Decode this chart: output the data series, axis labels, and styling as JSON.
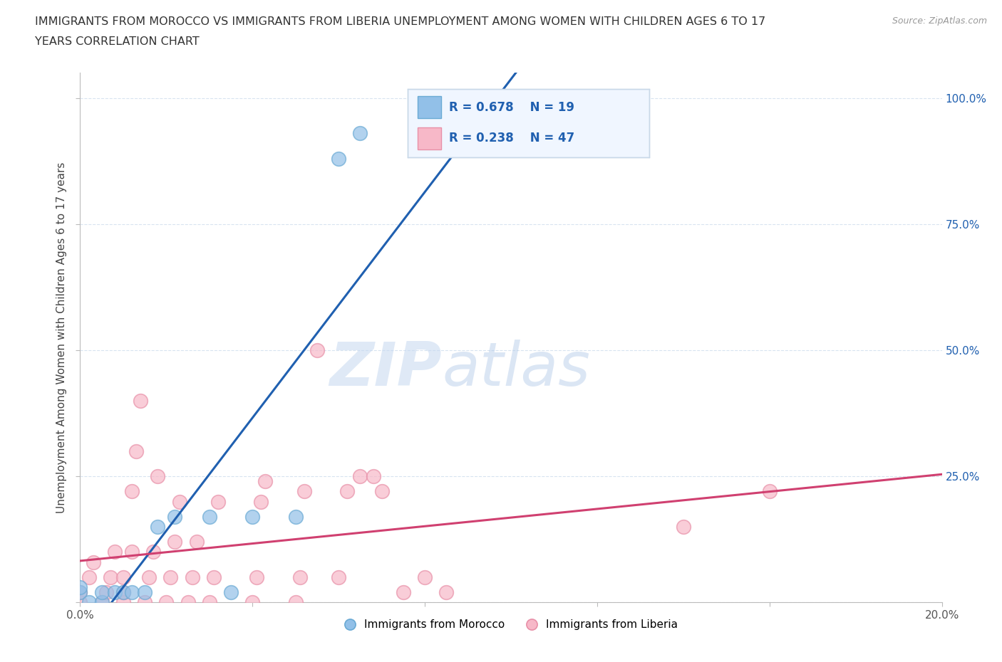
{
  "title_line1": "IMMIGRANTS FROM MOROCCO VS IMMIGRANTS FROM LIBERIA UNEMPLOYMENT AMONG WOMEN WITH CHILDREN AGES 6 TO 17",
  "title_line2": "YEARS CORRELATION CHART",
  "source": "Source: ZipAtlas.com",
  "ylabel": "Unemployment Among Women with Children Ages 6 to 17 years",
  "xlim": [
    0.0,
    0.2
  ],
  "ylim": [
    0.0,
    1.05
  ],
  "x_ticks": [
    0.0,
    0.04,
    0.08,
    0.12,
    0.16,
    0.2
  ],
  "y_ticks": [
    0.0,
    0.25,
    0.5,
    0.75,
    1.0
  ],
  "morocco_color": "#92c0e8",
  "morocco_edge": "#6aaad4",
  "liberia_color": "#f7b8c8",
  "liberia_edge": "#e890a8",
  "morocco_R": 0.678,
  "morocco_N": 19,
  "liberia_R": 0.238,
  "liberia_N": 47,
  "morocco_scatter": [
    [
      0.0,
      0.02
    ],
    [
      0.0,
      0.03
    ],
    [
      0.002,
      0.0
    ],
    [
      0.005,
      0.0
    ],
    [
      0.005,
      0.02
    ],
    [
      0.008,
      0.02
    ],
    [
      0.01,
      0.02
    ],
    [
      0.012,
      0.02
    ],
    [
      0.015,
      0.02
    ],
    [
      0.018,
      0.15
    ],
    [
      0.022,
      0.17
    ],
    [
      0.03,
      0.17
    ],
    [
      0.035,
      0.02
    ],
    [
      0.04,
      0.17
    ],
    [
      0.05,
      0.17
    ],
    [
      0.06,
      0.88
    ],
    [
      0.065,
      0.93
    ],
    [
      0.085,
      1.0
    ],
    [
      0.1,
      0.93
    ]
  ],
  "liberia_scatter": [
    [
      0.0,
      0.0
    ],
    [
      0.0,
      0.02
    ],
    [
      0.002,
      0.05
    ],
    [
      0.003,
      0.08
    ],
    [
      0.005,
      0.0
    ],
    [
      0.006,
      0.02
    ],
    [
      0.007,
      0.05
    ],
    [
      0.008,
      0.1
    ],
    [
      0.01,
      0.0
    ],
    [
      0.01,
      0.02
    ],
    [
      0.01,
      0.05
    ],
    [
      0.012,
      0.1
    ],
    [
      0.012,
      0.22
    ],
    [
      0.013,
      0.3
    ],
    [
      0.014,
      0.4
    ],
    [
      0.015,
      0.0
    ],
    [
      0.016,
      0.05
    ],
    [
      0.017,
      0.1
    ],
    [
      0.018,
      0.25
    ],
    [
      0.02,
      0.0
    ],
    [
      0.021,
      0.05
    ],
    [
      0.022,
      0.12
    ],
    [
      0.023,
      0.2
    ],
    [
      0.025,
      0.0
    ],
    [
      0.026,
      0.05
    ],
    [
      0.027,
      0.12
    ],
    [
      0.03,
      0.0
    ],
    [
      0.031,
      0.05
    ],
    [
      0.032,
      0.2
    ],
    [
      0.04,
      0.0
    ],
    [
      0.041,
      0.05
    ],
    [
      0.042,
      0.2
    ],
    [
      0.043,
      0.24
    ],
    [
      0.05,
      0.0
    ],
    [
      0.051,
      0.05
    ],
    [
      0.052,
      0.22
    ],
    [
      0.055,
      0.5
    ],
    [
      0.06,
      0.05
    ],
    [
      0.062,
      0.22
    ],
    [
      0.065,
      0.25
    ],
    [
      0.068,
      0.25
    ],
    [
      0.07,
      0.22
    ],
    [
      0.075,
      0.02
    ],
    [
      0.08,
      0.05
    ],
    [
      0.085,
      0.02
    ],
    [
      0.14,
      0.15
    ],
    [
      0.16,
      0.22
    ]
  ],
  "watermark_zip": "ZIP",
  "watermark_atlas": "atlas",
  "background_color": "#ffffff",
  "grid_color": "#d8e4f0",
  "morocco_line_color": "#2060b0",
  "liberia_line_color": "#d04070",
  "legend_text_color": "#2060b0",
  "legend_n_color": "#333333",
  "legend_border": "#c8d8e8",
  "legend_bg": "#f0f6ff"
}
